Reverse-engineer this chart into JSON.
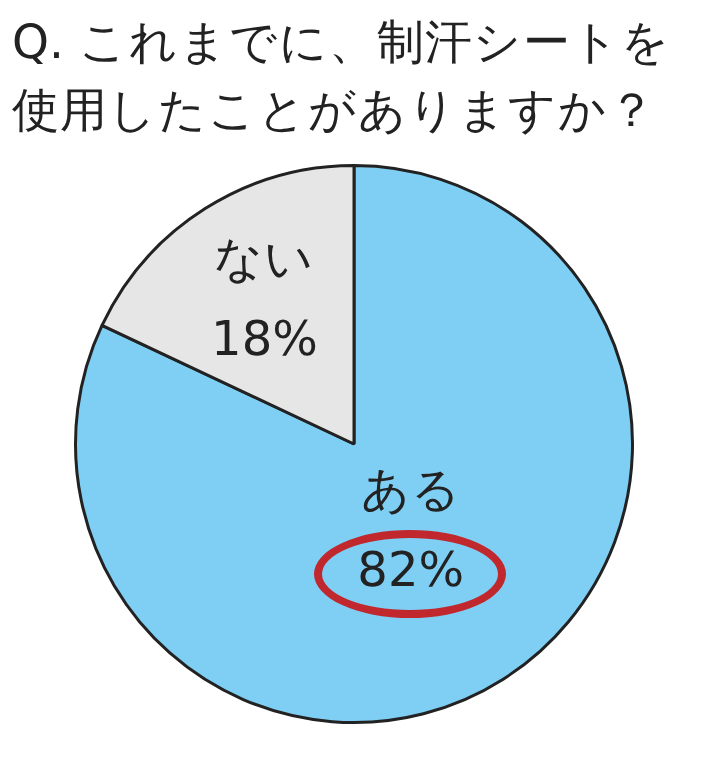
{
  "chart_data": {
    "type": "pie",
    "title": "Q. これまでに、制汗シートを使用したことがありますか？",
    "categories": [
      "ある",
      "ない"
    ],
    "values": [
      82,
      18
    ],
    "value_labels": [
      "82%",
      "18%"
    ],
    "colors": [
      "#7fcff5",
      "#e6e6e6"
    ],
    "legend": false
  }
}
